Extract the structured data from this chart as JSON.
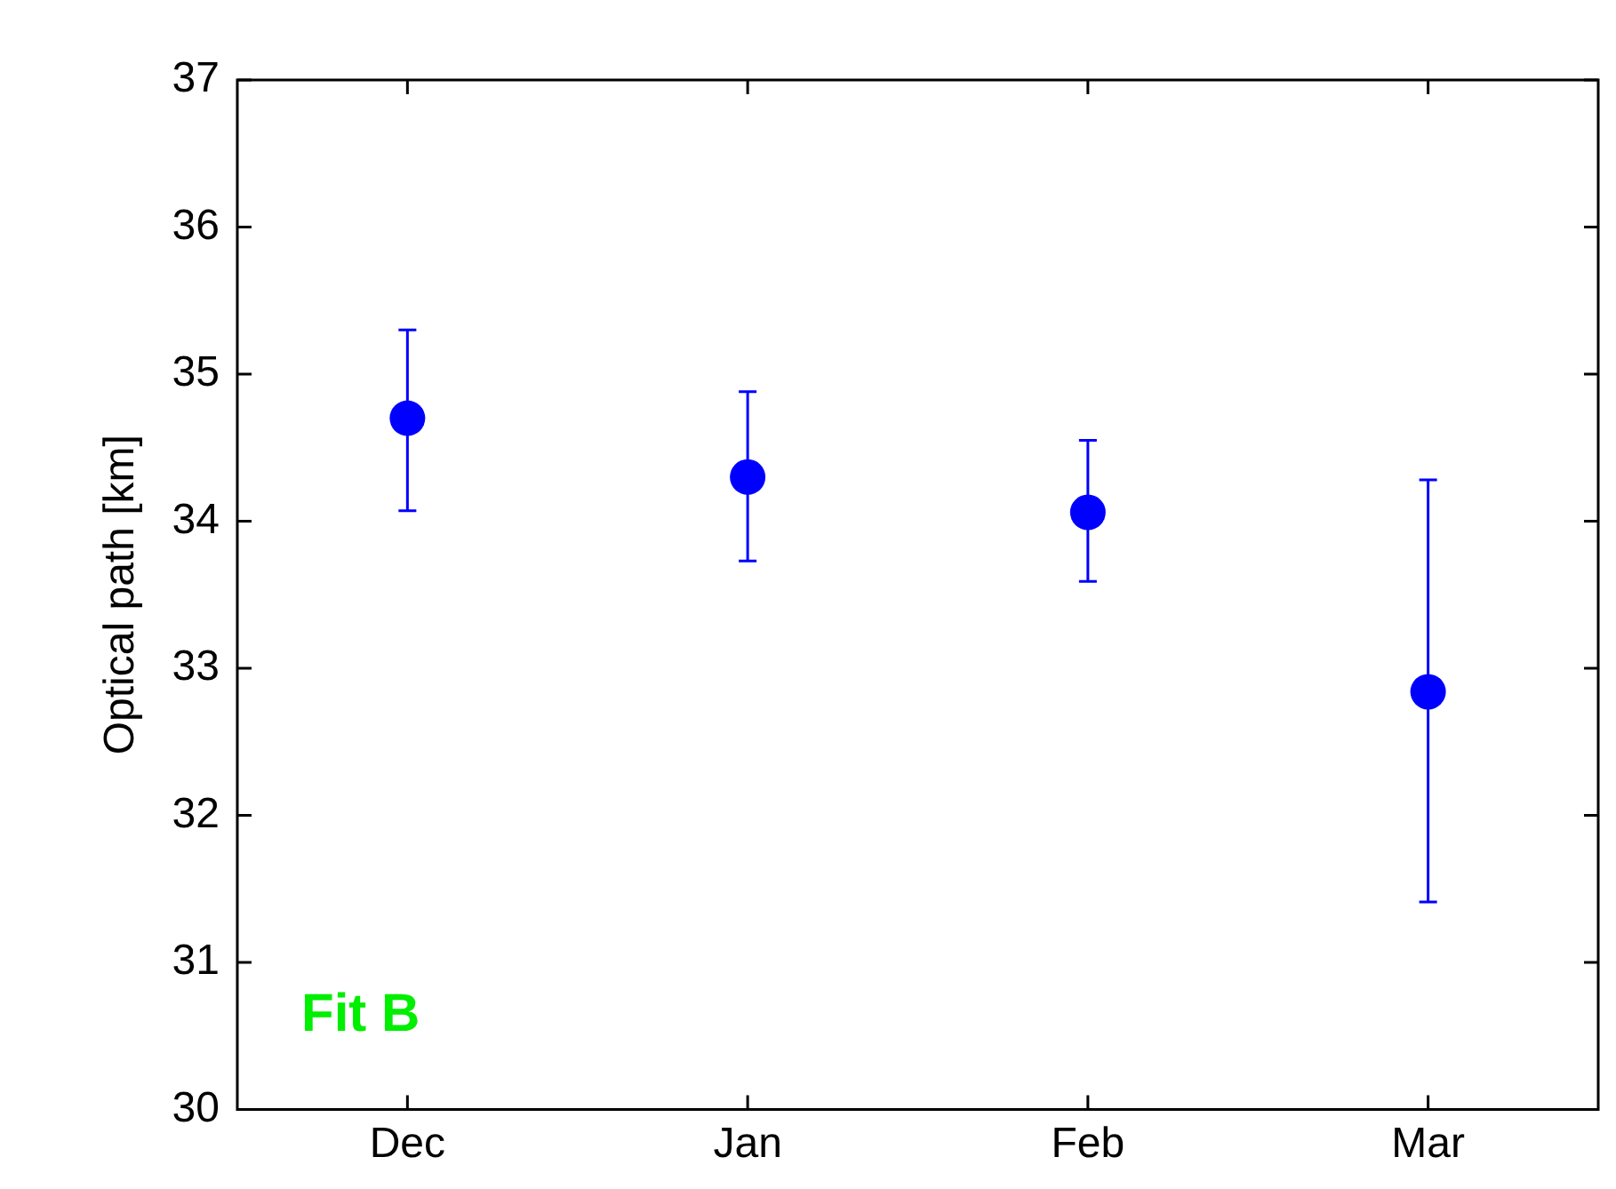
{
  "chart_data": {
    "type": "scatter",
    "ylabel": "Optical path [km]",
    "categories": [
      "Dec",
      "Jan",
      "Feb",
      "Mar"
    ],
    "values": [
      34.7,
      34.3,
      34.06,
      32.84
    ],
    "errors": [
      [
        34.07,
        35.3
      ],
      [
        33.73,
        34.88
      ],
      [
        33.59,
        34.55
      ],
      [
        31.41,
        34.28
      ]
    ],
    "color": "#0000ff",
    "marker": "circle",
    "ylim": [
      30,
      37
    ],
    "yticks": [
      30,
      31,
      32,
      33,
      34,
      35,
      36,
      37
    ],
    "grid": false,
    "legend": false,
    "annotations": [
      "Fit B"
    ]
  }
}
